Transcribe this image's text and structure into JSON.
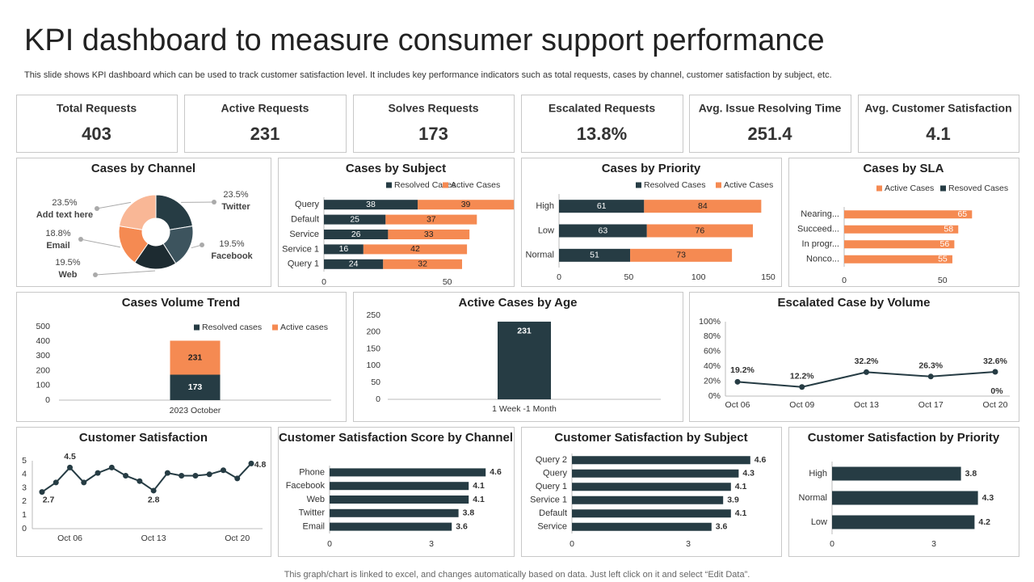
{
  "title": "KPI dashboard to measure consumer support performance",
  "subtitle": "This slide shows KPI dashboard which can be used to track customer satisfaction level. It includes key performance indicators such as total requests, cases by channel, customer satisfaction by subject, etc.",
  "kpis": [
    {
      "label": "Total Requests",
      "value": "403"
    },
    {
      "label": "Active Requests",
      "value": "231"
    },
    {
      "label": "Solves Requests",
      "value": "173"
    },
    {
      "label": "Escalated Requests",
      "value": "13.8%"
    },
    {
      "label": "Avg. Issue Resolving Time",
      "value": "251.4"
    },
    {
      "label": "Avg. Customer Satisfaction",
      "value": "4.1"
    }
  ],
  "footer": "This graph/chart is linked to excel,  and changes automatically based on data. Just left click on it and select “Edit Data”.",
  "chart_data": [
    {
      "type": "donut",
      "title": "Cases by Channel",
      "categories": [
        "Twitter",
        "Facebook",
        "Web",
        "Email",
        "Add text here"
      ],
      "values": [
        23.5,
        19.5,
        19.5,
        18.8,
        23.5
      ],
      "value_labels": [
        "23.5%",
        "19.5%",
        "19.5%",
        "18.8%",
        "23.5%"
      ],
      "colors": [
        "#263c44",
        "#3d545e",
        "#1d2b31",
        "#f58a52",
        "#f9b796"
      ]
    },
    {
      "type": "hbar",
      "title": "Cases by Subject",
      "categories": [
        "Query",
        "Default",
        "Service",
        "Service 1",
        "Query 1"
      ],
      "series": [
        {
          "name": "Resolved Cases",
          "color": "#263c44",
          "values": [
            38,
            25,
            26,
            16,
            24
          ]
        },
        {
          "name": "Active Cases",
          "color": "#f58a52",
          "values": [
            39,
            37,
            33,
            42,
            32
          ]
        }
      ],
      "xlim": [
        0,
        75
      ],
      "xticks": [
        0,
        50
      ]
    },
    {
      "type": "hbar",
      "title": "Cases by Priority",
      "categories": [
        "High",
        "Low",
        "Normal"
      ],
      "series": [
        {
          "name": "Resolved Cases",
          "color": "#263c44",
          "values": [
            61,
            63,
            51
          ]
        },
        {
          "name": "Active Cases",
          "color": "#f58a52",
          "values": [
            84,
            76,
            73
          ]
        }
      ],
      "xlim": [
        0,
        150
      ],
      "xticks": [
        0,
        50,
        100,
        150
      ]
    },
    {
      "type": "hbar",
      "title": "Cases by SLA",
      "categories": [
        "Nearing...",
        "Succeed...",
        "In progr...",
        "Nonco..."
      ],
      "series": [
        {
          "name": "Active Cases",
          "color": "#f58a52",
          "values": [
            65,
            58,
            56,
            55
          ]
        },
        {
          "name": "Resoved Cases",
          "color": "#263c44",
          "values": [
            null,
            null,
            null,
            null
          ]
        }
      ],
      "xlim": [
        0,
        85
      ],
      "xticks": [
        0,
        50
      ]
    },
    {
      "type": "bar",
      "title": "Cases Volume Trend",
      "categories": [
        "2023  October"
      ],
      "series": [
        {
          "name": "Resolved cases",
          "color": "#263c44",
          "values": [
            173
          ]
        },
        {
          "name": "Active cases",
          "color": "#f58a52",
          "values": [
            231
          ]
        }
      ],
      "ylim": [
        0,
        500
      ],
      "yticks": [
        0,
        100,
        200,
        300,
        400,
        500
      ]
    },
    {
      "type": "bar",
      "title": "Active Cases by Age",
      "categories": [
        "1 Week -1 Month"
      ],
      "values": [
        231
      ],
      "color": "#263c44",
      "ylim": [
        0,
        250
      ],
      "yticks": [
        0,
        50,
        100,
        150,
        200,
        250
      ]
    },
    {
      "type": "line",
      "title": "Escalated Case by Volume",
      "categories": [
        "Oct 06",
        "Oct 09",
        "Oct 13",
        "Oct 17",
        "Oct 20"
      ],
      "values": [
        19.2,
        12.2,
        32.2,
        26.3,
        32.6
      ],
      "value_labels": [
        "19.2%",
        "12.2%",
        "32.2%",
        "26.3%",
        "32.6%"
      ],
      "color": "#263c44",
      "ylim": [
        0,
        100
      ],
      "yticks": [
        {
          "value": 0,
          "label": "0%"
        },
        {
          "value": 20,
          "label": "20%"
        },
        {
          "value": 40,
          "label": "40%"
        },
        {
          "value": 60,
          "label": "60%"
        },
        {
          "value": 80,
          "label": "80%"
        },
        {
          "value": 100,
          "label": "100%"
        }
      ],
      "annotations": [
        "0%"
      ]
    },
    {
      "type": "line",
      "title": "Customer Satisfaction",
      "categories": [
        null,
        null,
        "Oct 06",
        null,
        null,
        null,
        null,
        null,
        "Oct 13",
        null,
        null,
        null,
        null,
        null,
        "Oct 20",
        null
      ],
      "values": [
        2.7,
        3.4,
        4.5,
        3.4,
        4.1,
        4.5,
        3.9,
        3.5,
        2.8,
        4.1,
        3.9,
        3.9,
        4.0,
        4.3,
        3.7,
        4.8
      ],
      "value_labels": [
        "2.7",
        null,
        "4.5",
        null,
        null,
        null,
        null,
        null,
        "2.8",
        null,
        null,
        null,
        null,
        null,
        null,
        "4.8"
      ],
      "color": "#263c44",
      "ylim": [
        0,
        5
      ],
      "yticks": [
        0,
        1,
        2,
        3,
        4,
        5
      ]
    },
    {
      "type": "hbar",
      "title": "Customer Satisfaction Score by Channel",
      "categories": [
        "Phone",
        "Facebook",
        "Web",
        "Twitter",
        "Email"
      ],
      "values": [
        4.6,
        4.1,
        4.1,
        3.8,
        3.6
      ],
      "color": "#263c44",
      "xlim": [
        0,
        5
      ],
      "xticks": [
        0,
        3
      ]
    },
    {
      "type": "hbar",
      "title": "Customer Satisfaction by Subject",
      "categories": [
        "Query 2",
        "Query",
        "Query 1",
        "Service 1",
        "Default",
        "Service"
      ],
      "values": [
        4.6,
        4.3,
        4.1,
        3.9,
        4.1,
        3.6
      ],
      "color": "#263c44",
      "xlim": [
        0,
        5
      ],
      "xticks": [
        0,
        3
      ]
    },
    {
      "type": "hbar",
      "title": "Customer Satisfaction by Priority",
      "categories": [
        "High",
        "Normal",
        "Low"
      ],
      "values": [
        3.8,
        4.3,
        4.2
      ],
      "color": "#263c44",
      "xlim": [
        0,
        5
      ],
      "xticks": [
        0,
        3
      ]
    }
  ]
}
